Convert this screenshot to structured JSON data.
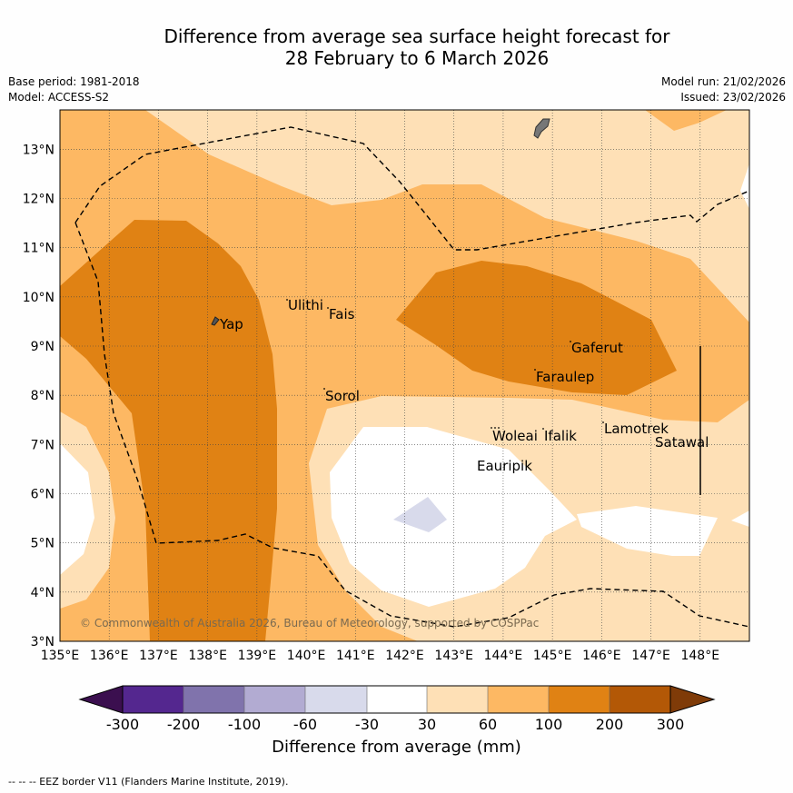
{
  "title_line1": "Difference from average sea surface height forecast for",
  "title_line2": "28 February to 6 March 2026",
  "base_period": "Base period: 1981-2018",
  "model": "Model: ACCESS-S2",
  "model_run": "Model run: 21/02/2026",
  "issued": "Issued: 23/02/2026",
  "lat_labels": [
    "13°N",
    "12°N",
    "11°N",
    "10°N",
    "9°N",
    "8°N",
    "7°N",
    "6°N",
    "5°N",
    "4°N",
    "3°N"
  ],
  "lon_labels": [
    "135°E",
    "136°E",
    "137°E",
    "138°E",
    "139°E",
    "140°E",
    "141°E",
    "142°E",
    "143°E",
    "144°E",
    "145°E",
    "146°E",
    "147°E",
    "148°E"
  ],
  "places": [
    "Yap",
    "Ulithi",
    "Fais",
    "Sorol",
    "Gaferut",
    "Faraulep",
    "Woleai",
    "Ifalik",
    "Lamotrek",
    "Satawal",
    "Eauripik"
  ],
  "watermark": "© Commonwealth of Australia 2026, Bureau of Meteorology, supported by COSPPac",
  "colorbar": {
    "ticks": [
      "-300",
      "-200",
      "-100",
      "-60",
      "-30",
      "30",
      "60",
      "100",
      "200",
      "300"
    ],
    "title": "Difference from average (mm)"
  },
  "colors": {
    "c_m300": "#3b0f4f",
    "c_m200": "#54278f",
    "c_m100": "#8073ac",
    "c_m60": "#b2abd2",
    "c_m30": "#d8daeb",
    "c_neutral": "#ffffff",
    "c_30": "#fee0b6",
    "c_60": "#fdb863",
    "c_100": "#e08214",
    "c_200": "#b35806",
    "c_300": "#7f3b08"
  },
  "legend_note": "--  --  -- EEZ border V11 (Flanders Marine Institute, 2019)."
}
